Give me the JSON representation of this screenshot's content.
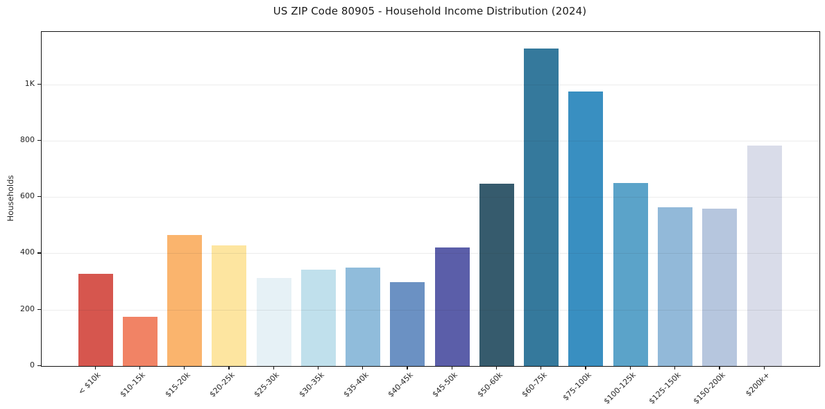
{
  "title": "US ZIP Code 80905 - Household Income Distribution (2024)",
  "chart_data": {
    "type": "bar",
    "title": "US ZIP Code 80905 - Household Income Distribution (2024)",
    "xlabel": "",
    "ylabel": "Households",
    "categories": [
      "< $10k",
      "$10-15k",
      "$15-20k",
      "$20-25k",
      "$25-30k",
      "$30-35k",
      "$35-40k",
      "$40-45k",
      "$45-50k",
      "$50-60k",
      "$60-75k",
      "$75-100k",
      "$100-125k",
      "$125-150k",
      "$150-200k",
      "$200k+"
    ],
    "values": [
      328,
      174,
      464,
      427,
      313,
      341,
      349,
      297,
      421,
      647,
      1128,
      974,
      650,
      564,
      558,
      782
    ],
    "bar_colors": [
      "#d6564e",
      "#f18365",
      "#fab46d",
      "#fde5a0",
      "#e6f1f6",
      "#c0e0ec",
      "#90bcdb",
      "#6b91c3",
      "#5b5ea9",
      "#365b6d",
      "#35799c",
      "#398fc1",
      "#5ba3c9",
      "#92b9d9",
      "#b6c6de",
      "#d9dce9"
    ],
    "ylim": [
      0,
      1186
    ],
    "yticks": [
      {
        "value": 0,
        "label": "0"
      },
      {
        "value": 200,
        "label": "200"
      },
      {
        "value": 400,
        "label": "400"
      },
      {
        "value": 600,
        "label": "600"
      },
      {
        "value": 800,
        "label": "800"
      },
      {
        "value": 1000,
        "label": "1K"
      }
    ],
    "grid": "horizontal",
    "legend": "none"
  },
  "colors": {
    "background": "#ffffff",
    "axis": "#141414",
    "grid_on_white": "#ebebeb",
    "text": "#262626"
  }
}
